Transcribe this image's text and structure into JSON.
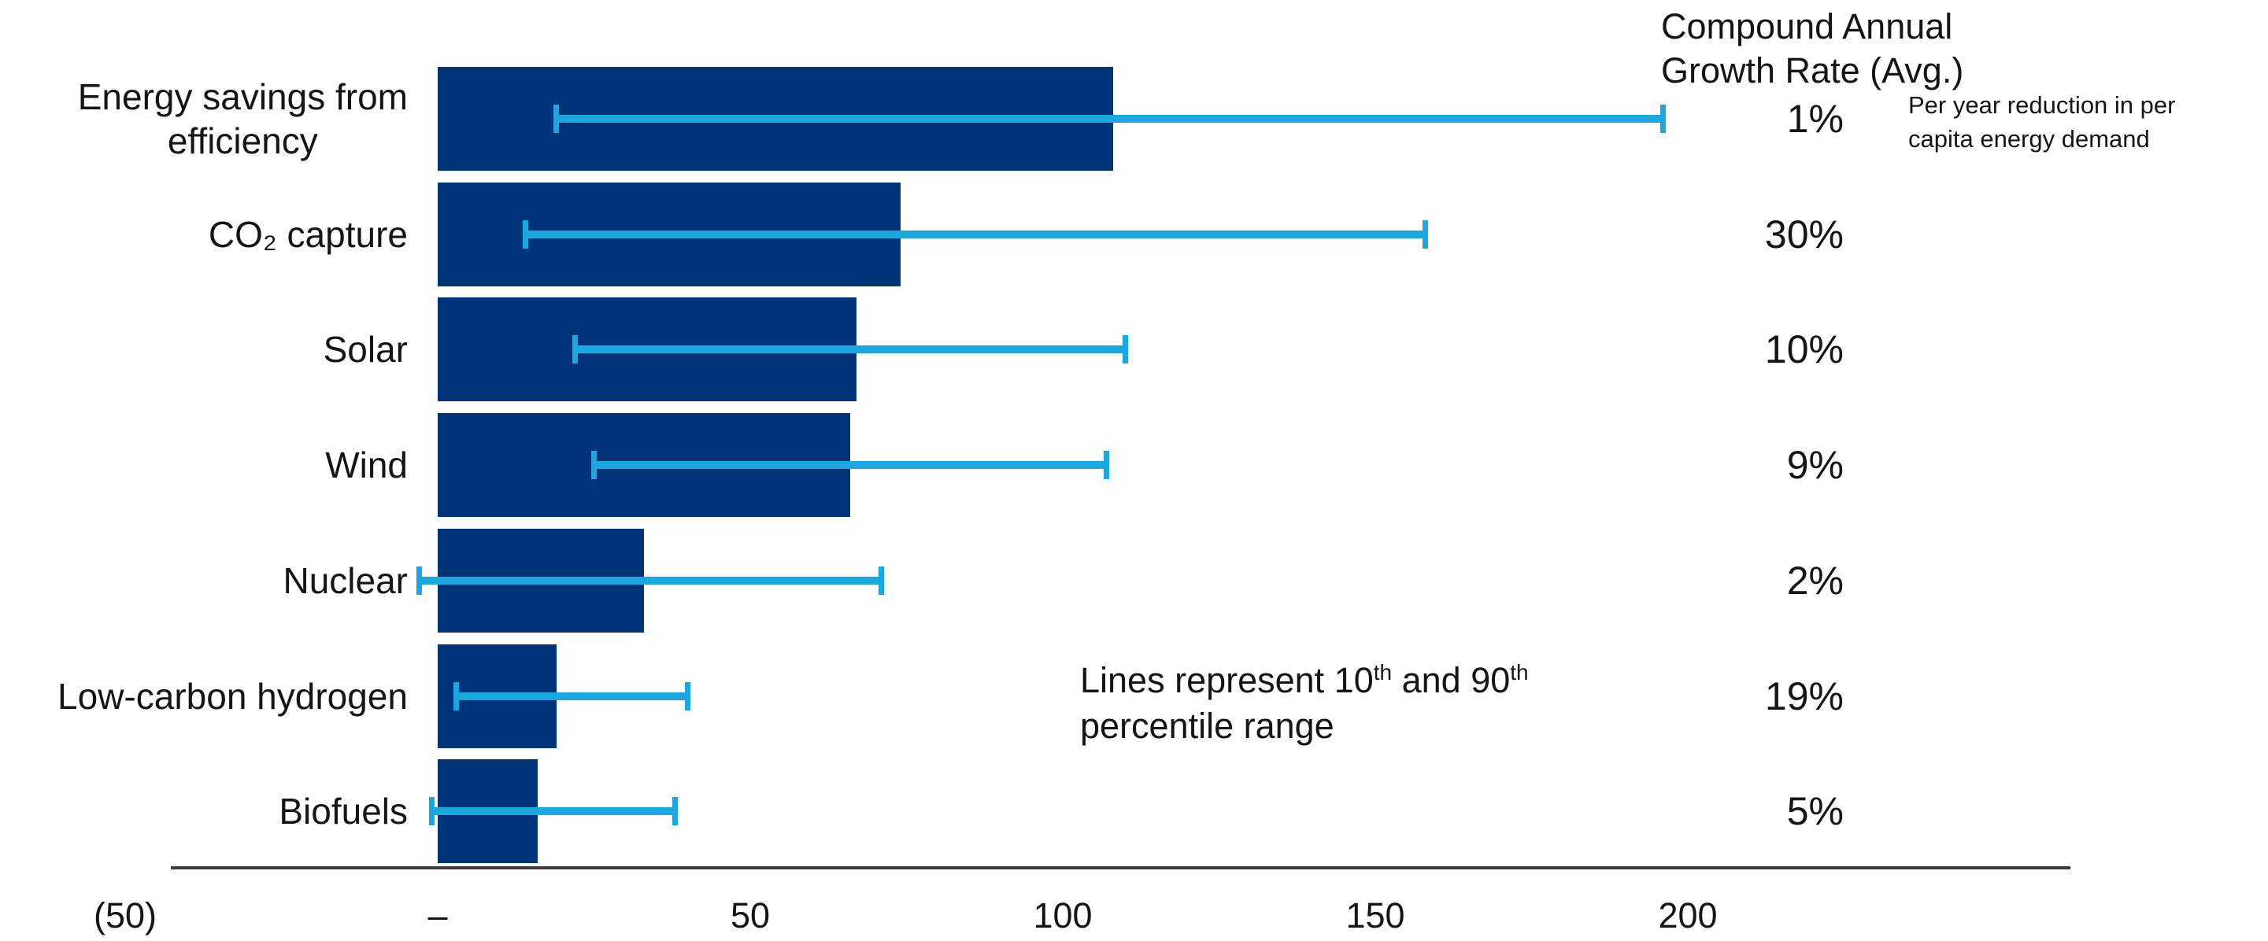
{
  "header": {
    "line1": "Compound Annual",
    "line2": "Growth Rate (Avg.)"
  },
  "annotations": {
    "efficiency_note_line1": "Per year reduction in per",
    "efficiency_note_line2": "capita energy demand",
    "percentile_note": {
      "line1_parts": [
        "Lines represent 10",
        "th",
        " and 90",
        "th"
      ],
      "line2": "percentile range"
    }
  },
  "colors": {
    "bar": "#003478",
    "error_bar": "#1ba8e1",
    "axis": "#3c3c3c",
    "text": "#151515"
  },
  "chart_data": {
    "type": "bar",
    "orientation": "horizontal",
    "title": "",
    "xlabel": "",
    "ylabel": "",
    "xlim": [
      -50,
      260
    ],
    "grid": false,
    "categories": [
      "Energy savings from efficiency",
      "CO₂ capture",
      "Solar",
      "Wind",
      "Nuclear",
      "Low-carbon hydrogen",
      "Biofuels"
    ],
    "category_lines": [
      [
        "Energy savings from",
        "efficiency"
      ],
      [
        "CO₂ capture"
      ],
      [
        "Solar"
      ],
      [
        "Wind"
      ],
      [
        "Nuclear"
      ],
      [
        "Low-carbon hydrogen"
      ],
      [
        "Biofuels"
      ]
    ],
    "values": [
      108,
      74,
      67,
      66,
      33,
      19,
      16
    ],
    "error_low": [
      19,
      14,
      22,
      25,
      -3,
      3,
      -1
    ],
    "error_high": [
      196,
      158,
      110,
      107,
      71,
      40,
      38
    ],
    "error_bars_meaning": "10th and 90th percentile range",
    "cagr": [
      "1%",
      "30%",
      "10%",
      "9%",
      "2%",
      "19%",
      "5%"
    ],
    "x_ticks": [
      {
        "value": -50,
        "label": "(50)"
      },
      {
        "value": 0,
        "label": "–"
      },
      {
        "value": 50,
        "label": "50"
      },
      {
        "value": 100,
        "label": "100"
      },
      {
        "value": 150,
        "label": "150"
      },
      {
        "value": 200,
        "label": "200"
      }
    ]
  }
}
